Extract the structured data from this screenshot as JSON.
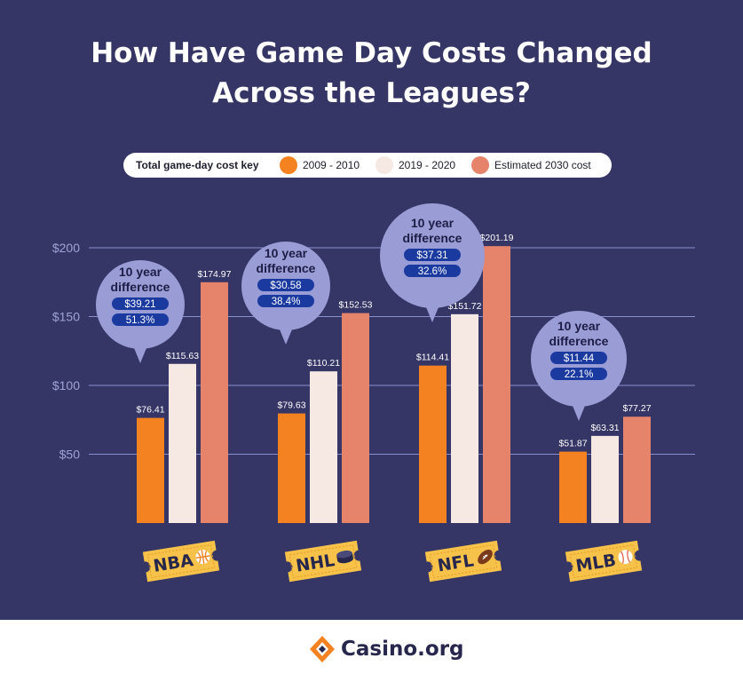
{
  "title_line1": "How Have Game Day Costs Changed",
  "title_line2": "Across the Leagues?",
  "legend": {
    "label": "Total game-day cost key",
    "items": [
      "2009 - 2010",
      "2019 - 2020",
      "Estimated 2030 cost"
    ]
  },
  "footer": {
    "brand": "Casino.org",
    "logo_icon": "casino-diamond-logo-icon"
  },
  "colors": {
    "background": "#353566",
    "series": [
      "#f58220",
      "#f6e8e3",
      "#e5836b"
    ],
    "bubble": "#9a9cd6",
    "pill": "#1b3aa0",
    "ticket": "#f7c24a",
    "gridline": "#8a8fd0",
    "tick_text": "#9ea3d6"
  },
  "chart_data": {
    "type": "bar",
    "title": "How Have Game Day Costs Changed Across the Leagues?",
    "categories": [
      "NBA",
      "NHL",
      "NFL",
      "MLB"
    ],
    "category_icons": [
      "basketball-icon",
      "hockey-puck-icon",
      "football-icon",
      "baseball-icon"
    ],
    "series": [
      {
        "name": "2009 - 2010",
        "values": [
          76.41,
          79.63,
          114.41,
          51.87
        ],
        "labels": [
          "$76.41",
          "$79.63",
          "$114.41",
          "$51.87"
        ]
      },
      {
        "name": "2019 - 2020",
        "values": [
          115.63,
          110.21,
          151.72,
          63.31
        ],
        "labels": [
          "$115.63",
          "$110.21",
          "$151.72",
          "$63.31"
        ]
      },
      {
        "name": "Estimated 2030 cost",
        "values": [
          174.97,
          152.53,
          201.19,
          77.27
        ],
        "labels": [
          "$174.97",
          "$152.53",
          "$201.19",
          "$77.27"
        ]
      }
    ],
    "yticks": [
      50,
      100,
      150,
      200
    ],
    "ytick_labels": [
      "$50",
      "$100",
      "$150",
      "$200"
    ],
    "ylim": [
      0,
      200
    ],
    "grid": true,
    "legend_position": "top",
    "annotations": [
      {
        "category": "NBA",
        "line1": "10 year",
        "line2": "difference",
        "amount": "$39.21",
        "percent": "51.3%"
      },
      {
        "category": "NHL",
        "line1": "10 year",
        "line2": "difference",
        "amount": "$30.58",
        "percent": "38.4%"
      },
      {
        "category": "NFL",
        "line1": "10 year",
        "line2": "difference",
        "amount": "$37.31",
        "percent": "32.6%"
      },
      {
        "category": "MLB",
        "line1": "10 year",
        "line2": "difference",
        "amount": "$11.44",
        "percent": "22.1%"
      }
    ]
  }
}
